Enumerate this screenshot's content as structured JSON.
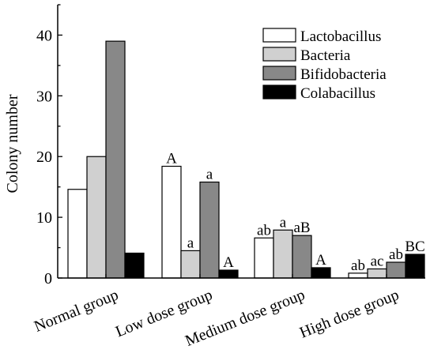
{
  "chart_data": {
    "type": "bar",
    "title": "",
    "xlabel": "",
    "ylabel": "Colony number",
    "ylim": [
      0,
      45
    ],
    "yticks": [
      0,
      10,
      20,
      30,
      40
    ],
    "grid": false,
    "legend_position": "top-right",
    "categories": [
      "Normal group",
      "Low dose group",
      "Medium dose group",
      "High dose group"
    ],
    "series": [
      {
        "name": "Lactobacillus",
        "color": "#ffffff",
        "values": [
          14.6,
          18.4,
          6.6,
          0.8
        ],
        "labels": [
          "",
          "A",
          "ab",
          "ab"
        ]
      },
      {
        "name": "Bacteria",
        "color": "#d0d0d0",
        "values": [
          20.0,
          4.5,
          7.9,
          1.5
        ],
        "labels": [
          "",
          "a",
          "a",
          "ac"
        ]
      },
      {
        "name": "Bifidobacteria",
        "color": "#888888",
        "values": [
          39.0,
          15.8,
          7.0,
          2.6
        ],
        "labels": [
          "",
          "a",
          "aB",
          "ab"
        ]
      },
      {
        "name": "Colabacillus",
        "color": "#000000",
        "values": [
          4.1,
          1.3,
          1.7,
          3.9
        ],
        "labels": [
          "",
          "A",
          "A",
          "BC"
        ]
      }
    ]
  }
}
